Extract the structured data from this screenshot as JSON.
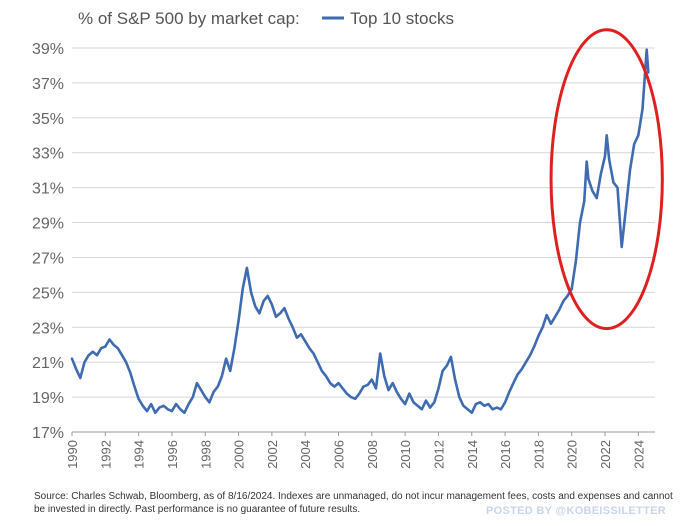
{
  "chart_data": {
    "type": "line",
    "title": "% of S&P 500 by market cap:",
    "legend": {
      "label": "Top 10 stocks",
      "placement": "top",
      "color": "#3f6bb0"
    },
    "series": [
      {
        "name": "Top 10 stocks",
        "color": "#3f6bb0",
        "points": [
          [
            1990.0,
            21.2
          ],
          [
            1990.25,
            20.6
          ],
          [
            1990.5,
            20.1
          ],
          [
            1990.75,
            21.0
          ],
          [
            1991.0,
            21.4
          ],
          [
            1991.25,
            21.6
          ],
          [
            1991.5,
            21.4
          ],
          [
            1991.75,
            21.8
          ],
          [
            1992.0,
            21.9
          ],
          [
            1992.25,
            22.3
          ],
          [
            1992.5,
            22.0
          ],
          [
            1992.75,
            21.8
          ],
          [
            1993.0,
            21.4
          ],
          [
            1993.25,
            21.0
          ],
          [
            1993.5,
            20.4
          ],
          [
            1993.75,
            19.6
          ],
          [
            1994.0,
            18.9
          ],
          [
            1994.25,
            18.5
          ],
          [
            1994.5,
            18.2
          ],
          [
            1994.75,
            18.6
          ],
          [
            1995.0,
            18.1
          ],
          [
            1995.25,
            18.4
          ],
          [
            1995.5,
            18.5
          ],
          [
            1995.75,
            18.3
          ],
          [
            1996.0,
            18.2
          ],
          [
            1996.25,
            18.6
          ],
          [
            1996.5,
            18.3
          ],
          [
            1996.75,
            18.1
          ],
          [
            1997.0,
            18.6
          ],
          [
            1997.25,
            19.0
          ],
          [
            1997.5,
            19.8
          ],
          [
            1997.75,
            19.4
          ],
          [
            1998.0,
            19.0
          ],
          [
            1998.25,
            18.7
          ],
          [
            1998.5,
            19.3
          ],
          [
            1998.75,
            19.6
          ],
          [
            1999.0,
            20.2
          ],
          [
            1999.25,
            21.2
          ],
          [
            1999.5,
            20.5
          ],
          [
            1999.75,
            21.8
          ],
          [
            2000.0,
            23.4
          ],
          [
            2000.25,
            25.2
          ],
          [
            2000.5,
            26.4
          ],
          [
            2000.75,
            25.0
          ],
          [
            2001.0,
            24.2
          ],
          [
            2001.25,
            23.8
          ],
          [
            2001.5,
            24.5
          ],
          [
            2001.75,
            24.8
          ],
          [
            2002.0,
            24.3
          ],
          [
            2002.25,
            23.6
          ],
          [
            2002.5,
            23.8
          ],
          [
            2002.75,
            24.1
          ],
          [
            2003.0,
            23.5
          ],
          [
            2003.25,
            23.0
          ],
          [
            2003.5,
            22.4
          ],
          [
            2003.75,
            22.6
          ],
          [
            2004.0,
            22.2
          ],
          [
            2004.25,
            21.8
          ],
          [
            2004.5,
            21.5
          ],
          [
            2004.75,
            21.0
          ],
          [
            2005.0,
            20.5
          ],
          [
            2005.25,
            20.2
          ],
          [
            2005.5,
            19.8
          ],
          [
            2005.75,
            19.6
          ],
          [
            2006.0,
            19.8
          ],
          [
            2006.25,
            19.5
          ],
          [
            2006.5,
            19.2
          ],
          [
            2006.75,
            19.0
          ],
          [
            2007.0,
            18.9
          ],
          [
            2007.25,
            19.2
          ],
          [
            2007.5,
            19.6
          ],
          [
            2007.75,
            19.7
          ],
          [
            2008.0,
            20.0
          ],
          [
            2008.25,
            19.5
          ],
          [
            2008.5,
            21.5
          ],
          [
            2008.75,
            20.2
          ],
          [
            2009.0,
            19.4
          ],
          [
            2009.25,
            19.8
          ],
          [
            2009.5,
            19.3
          ],
          [
            2009.75,
            18.9
          ],
          [
            2010.0,
            18.6
          ],
          [
            2010.25,
            19.2
          ],
          [
            2010.5,
            18.7
          ],
          [
            2010.75,
            18.5
          ],
          [
            2011.0,
            18.3
          ],
          [
            2011.25,
            18.8
          ],
          [
            2011.5,
            18.4
          ],
          [
            2011.75,
            18.7
          ],
          [
            2012.0,
            19.5
          ],
          [
            2012.25,
            20.5
          ],
          [
            2012.5,
            20.8
          ],
          [
            2012.75,
            21.3
          ],
          [
            2013.0,
            20.0
          ],
          [
            2013.25,
            19.0
          ],
          [
            2013.5,
            18.5
          ],
          [
            2013.75,
            18.3
          ],
          [
            2014.0,
            18.1
          ],
          [
            2014.25,
            18.6
          ],
          [
            2014.5,
            18.7
          ],
          [
            2014.75,
            18.5
          ],
          [
            2015.0,
            18.6
          ],
          [
            2015.25,
            18.3
          ],
          [
            2015.5,
            18.4
          ],
          [
            2015.75,
            18.3
          ],
          [
            2016.0,
            18.7
          ],
          [
            2016.25,
            19.3
          ],
          [
            2016.5,
            19.8
          ],
          [
            2016.75,
            20.3
          ],
          [
            2017.0,
            20.6
          ],
          [
            2017.25,
            21.0
          ],
          [
            2017.5,
            21.4
          ],
          [
            2017.75,
            21.9
          ],
          [
            2018.0,
            22.5
          ],
          [
            2018.25,
            23.0
          ],
          [
            2018.5,
            23.7
          ],
          [
            2018.75,
            23.2
          ],
          [
            2019.0,
            23.6
          ],
          [
            2019.25,
            24.0
          ],
          [
            2019.5,
            24.5
          ],
          [
            2019.75,
            24.8
          ],
          [
            2020.0,
            25.2
          ],
          [
            2020.25,
            26.8
          ],
          [
            2020.5,
            29.0
          ],
          [
            2020.75,
            30.2
          ],
          [
            2020.9,
            32.5
          ],
          [
            2021.0,
            31.5
          ],
          [
            2021.25,
            30.8
          ],
          [
            2021.5,
            30.4
          ],
          [
            2021.75,
            31.8
          ],
          [
            2022.0,
            32.8
          ],
          [
            2022.1,
            34.0
          ],
          [
            2022.25,
            32.6
          ],
          [
            2022.5,
            31.3
          ],
          [
            2022.75,
            31.0
          ],
          [
            2023.0,
            27.6
          ],
          [
            2023.25,
            29.8
          ],
          [
            2023.5,
            32.0
          ],
          [
            2023.75,
            33.5
          ],
          [
            2024.0,
            34.0
          ],
          [
            2024.25,
            35.5
          ],
          [
            2024.5,
            38.9
          ],
          [
            2024.6,
            37.6
          ]
        ]
      }
    ],
    "x_ticks": [
      "1990",
      "1992",
      "1994",
      "1996",
      "1998",
      "2000",
      "2002",
      "2004",
      "2006",
      "2008",
      "2010",
      "2012",
      "2014",
      "2016",
      "2018",
      "2020",
      "2022",
      "2024"
    ],
    "y_ticks": [
      "39%",
      "37%",
      "35%",
      "33%",
      "31%",
      "29%",
      "27%",
      "25%",
      "23%",
      "21%",
      "19%",
      "17%"
    ],
    "xlim": [
      1990,
      2025
    ],
    "ylim": [
      17,
      39
    ],
    "grid": {
      "horizontal": true,
      "vertical": false
    },
    "annotation": {
      "type": "ellipse",
      "color": "#e02020",
      "label": "",
      "region_x": [
        2019.0,
        2025.2
      ],
      "region_y": [
        24.3,
        38.9
      ]
    }
  },
  "source_note": "Source: Charles Schwab, Bloomberg, as of 8/16/2024. Indexes are unmanaged, do not incur management fees, costs and expenses and cannot be invested in directly. Past performance is no guarantee of future results.",
  "watermark": "POSTED BY @KOBEISSILETTER"
}
